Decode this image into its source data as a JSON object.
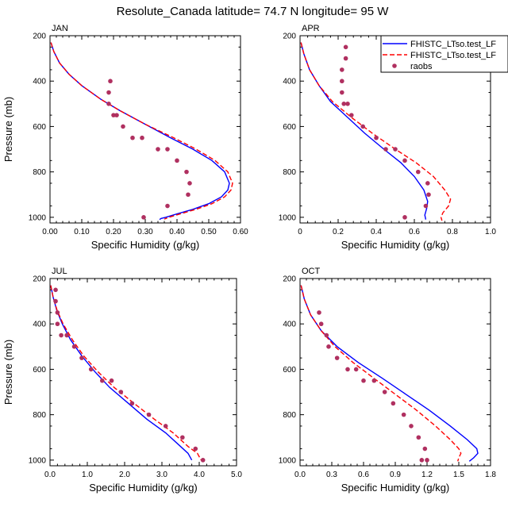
{
  "page_title": "Resolute_Canada  latitude= 74.7 N longitude= 95 W",
  "colors": {
    "model1": "#0000ff",
    "model2": "#ff0000",
    "raobs": "#b03060"
  },
  "legend": {
    "entries": [
      {
        "label": "FHISTC_LTso.test_LF",
        "style": "solid",
        "color": "#0000ff"
      },
      {
        "label": "FHISTC_LTso.test_LF",
        "style": "dashed",
        "color": "#ff0000"
      },
      {
        "label": "raobs",
        "style": "marker",
        "color": "#b03060"
      }
    ]
  },
  "chart_data": [
    {
      "type": "line",
      "title": "JAN",
      "xlabel": "Specific Humidity (g/kg)",
      "ylabel": "Pressure (mb)",
      "xlim": [
        0,
        0.6
      ],
      "ylim": [
        1025,
        200
      ],
      "xticks": [
        "0.00",
        "0.10",
        "0.20",
        "0.30",
        "0.40",
        "0.50",
        "0.60"
      ],
      "yticks": [
        "200",
        "400",
        "600",
        "800",
        "1000"
      ],
      "series": [
        {
          "style": "solid",
          "color": "#0000ff",
          "x": [
            0.003,
            0.012,
            0.03,
            0.06,
            0.1,
            0.16,
            0.22,
            0.3,
            0.38,
            0.45,
            0.51,
            0.55,
            0.565,
            0.56,
            0.54,
            0.5,
            0.45,
            0.4,
            0.365,
            0.35,
            0.345
          ],
          "y": [
            230,
            270,
            320,
            370,
            420,
            480,
            530,
            590,
            650,
            700,
            750,
            800,
            850,
            880,
            910,
            940,
            965,
            985,
            1000,
            1005,
            1010
          ]
        },
        {
          "style": "dashed",
          "color": "#ff0000",
          "x": [
            0.003,
            0.012,
            0.03,
            0.06,
            0.1,
            0.16,
            0.22,
            0.3,
            0.39,
            0.46,
            0.52,
            0.56,
            0.575,
            0.57,
            0.55,
            0.51,
            0.46,
            0.41,
            0.375,
            0.36
          ],
          "y": [
            230,
            270,
            320,
            370,
            420,
            480,
            530,
            590,
            650,
            700,
            750,
            800,
            850,
            880,
            910,
            940,
            965,
            985,
            1000,
            1008
          ]
        },
        {
          "style": "marker",
          "color": "#b03060",
          "x": [
            0.19,
            0.185,
            0.185,
            0.2,
            0.21,
            0.23,
            0.26,
            0.29,
            0.34,
            0.37,
            0.4,
            0.43,
            0.44,
            0.435,
            0.37,
            0.295
          ],
          "y": [
            400,
            450,
            500,
            550,
            550,
            600,
            650,
            650,
            700,
            700,
            750,
            800,
            850,
            900,
            950,
            1000
          ]
        }
      ]
    },
    {
      "type": "line",
      "title": "APR",
      "xlabel": "Specific Humidity (g/kg)",
      "ylabel": "",
      "xlim": [
        0,
        1.0
      ],
      "ylim": [
        1025,
        200
      ],
      "xticks": [
        "0",
        "0.2",
        "0.4",
        "0.6",
        "0.8",
        "1.0"
      ],
      "yticks": [
        "200",
        "400",
        "600",
        "800",
        "1000"
      ],
      "series": [
        {
          "style": "solid",
          "color": "#0000ff",
          "x": [
            0.005,
            0.02,
            0.05,
            0.1,
            0.16,
            0.25,
            0.34,
            0.44,
            0.53,
            0.6,
            0.65,
            0.67,
            0.665,
            0.655,
            0.66
          ],
          "y": [
            230,
            280,
            350,
            420,
            490,
            560,
            630,
            700,
            760,
            820,
            880,
            930,
            960,
            990,
            1010
          ]
        },
        {
          "style": "dashed",
          "color": "#ff0000",
          "x": [
            0.005,
            0.02,
            0.05,
            0.1,
            0.17,
            0.27,
            0.38,
            0.5,
            0.61,
            0.7,
            0.76,
            0.79,
            0.78,
            0.75,
            0.74,
            0.745
          ],
          "y": [
            230,
            280,
            350,
            420,
            490,
            560,
            630,
            700,
            760,
            820,
            880,
            920,
            950,
            980,
            1000,
            1015
          ]
        },
        {
          "style": "marker",
          "color": "#b03060",
          "x": [
            0.24,
            0.24,
            0.22,
            0.22,
            0.22,
            0.23,
            0.25,
            0.27,
            0.33,
            0.4,
            0.45,
            0.5,
            0.55,
            0.62,
            0.67,
            0.675,
            0.66,
            0.55
          ],
          "y": [
            250,
            300,
            350,
            400,
            450,
            500,
            500,
            550,
            600,
            650,
            700,
            700,
            750,
            800,
            850,
            900,
            950,
            1000
          ]
        }
      ]
    },
    {
      "type": "line",
      "title": "JUL",
      "xlabel": "Specific Humidity (g/kg)",
      "ylabel": "Pressure (mb)",
      "xlim": [
        0,
        5.0
      ],
      "ylim": [
        1025,
        200
      ],
      "xticks": [
        "0.0",
        "1.0",
        "2.0",
        "3.0",
        "4.0",
        "5.0"
      ],
      "yticks": [
        "200",
        "400",
        "600",
        "800",
        "1000"
      ],
      "series": [
        {
          "style": "solid",
          "color": "#0000ff",
          "x": [
            0.02,
            0.08,
            0.18,
            0.33,
            0.55,
            0.85,
            1.2,
            1.6,
            2.1,
            2.6,
            3.1,
            3.5,
            3.7,
            3.8
          ],
          "y": [
            230,
            280,
            340,
            400,
            470,
            540,
            610,
            680,
            750,
            820,
            880,
            940,
            970,
            1000
          ]
        },
        {
          "style": "dashed",
          "color": "#ff0000",
          "x": [
            0.02,
            0.08,
            0.19,
            0.35,
            0.6,
            0.9,
            1.28,
            1.72,
            2.25,
            2.8,
            3.3,
            3.7,
            3.95,
            4.05
          ],
          "y": [
            230,
            280,
            340,
            400,
            470,
            540,
            610,
            680,
            750,
            820,
            880,
            940,
            970,
            1000
          ]
        },
        {
          "style": "marker",
          "color": "#b03060",
          "x": [
            0.15,
            0.15,
            0.2,
            0.2,
            0.3,
            0.45,
            0.65,
            0.85,
            1.1,
            1.4,
            1.65,
            1.9,
            2.2,
            2.65,
            3.1,
            3.55,
            3.9,
            4.1
          ],
          "y": [
            250,
            300,
            350,
            400,
            450,
            450,
            500,
            550,
            600,
            650,
            650,
            700,
            750,
            800,
            850,
            900,
            950,
            1000
          ]
        }
      ]
    },
    {
      "type": "line",
      "title": "OCT",
      "xlabel": "Specific Humidity (g/kg)",
      "ylabel": "",
      "xlim": [
        0,
        1.8
      ],
      "ylim": [
        1025,
        200
      ],
      "xticks": [
        "0.0",
        "0.3",
        "0.6",
        "0.9",
        "1.2",
        "1.5",
        "1.8"
      ],
      "yticks": [
        "200",
        "400",
        "600",
        "800",
        "1000"
      ],
      "series": [
        {
          "style": "solid",
          "color": "#0000ff",
          "x": [
            0.01,
            0.04,
            0.1,
            0.2,
            0.35,
            0.55,
            0.78,
            1.0,
            1.22,
            1.42,
            1.58,
            1.67,
            1.68,
            1.64,
            1.6
          ],
          "y": [
            230,
            290,
            360,
            430,
            500,
            570,
            640,
            710,
            780,
            850,
            910,
            950,
            970,
            990,
            1005
          ]
        },
        {
          "style": "dashed",
          "color": "#ff0000",
          "x": [
            0.01,
            0.04,
            0.1,
            0.2,
            0.33,
            0.5,
            0.7,
            0.9,
            1.1,
            1.28,
            1.42,
            1.5,
            1.52,
            1.5,
            1.49
          ],
          "y": [
            230,
            290,
            360,
            430,
            500,
            570,
            640,
            710,
            780,
            850,
            910,
            950,
            970,
            990,
            1005
          ]
        },
        {
          "style": "marker",
          "color": "#b03060",
          "x": [
            0.18,
            0.2,
            0.25,
            0.27,
            0.35,
            0.45,
            0.53,
            0.6,
            0.7,
            0.8,
            0.88,
            0.98,
            1.05,
            1.12,
            1.18,
            1.2,
            1.15
          ],
          "y": [
            350,
            400,
            450,
            500,
            550,
            600,
            600,
            650,
            650,
            700,
            750,
            800,
            850,
            900,
            950,
            1000,
            1000
          ]
        }
      ]
    }
  ]
}
